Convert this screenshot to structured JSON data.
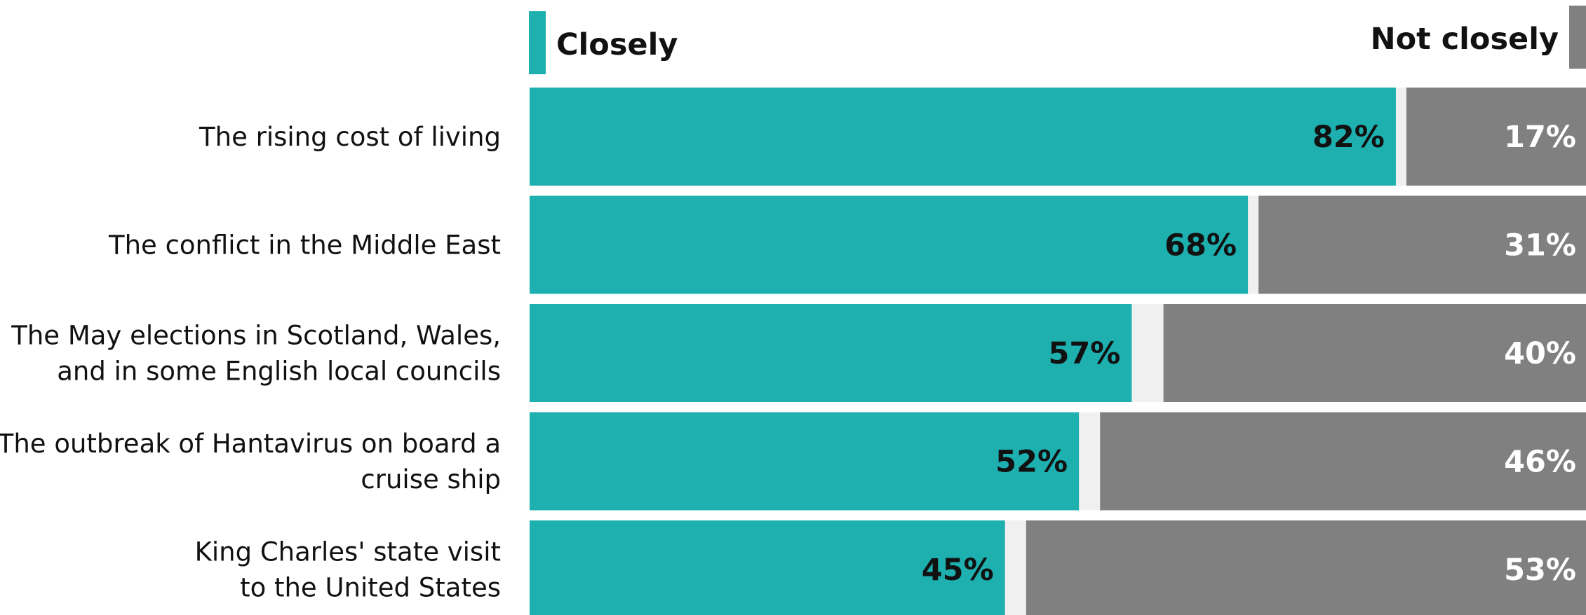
{
  "chart_data": {
    "type": "bar",
    "stacked": true,
    "orientation": "horizontal",
    "categories": [
      [
        "The rising cost of living"
      ],
      [
        "The conflict in the Middle East"
      ],
      [
        "The May elections in Scotland, Wales,",
        "and in some English local councils"
      ],
      [
        "The outbreak of Hantavirus on board a",
        "cruise ship"
      ],
      [
        "King Charles' state visit",
        "to the United States"
      ]
    ],
    "series": [
      {
        "name": "Closely",
        "color": "#1eafaf",
        "values": [
          82,
          68,
          57,
          52,
          45
        ],
        "labels": [
          "82%",
          "68%",
          "57%",
          "52%",
          "45%"
        ]
      },
      {
        "name": "Not closely",
        "color": "#808080",
        "values": [
          17,
          31,
          40,
          46,
          53
        ],
        "labels": [
          "17%",
          "31%",
          "40%",
          "46%",
          "53%"
        ]
      }
    ],
    "gap_color": "#f0f0f0",
    "xlim": [
      0,
      100
    ],
    "legend": {
      "closely_position": "top-left",
      "not_closely_position": "top-right"
    }
  }
}
